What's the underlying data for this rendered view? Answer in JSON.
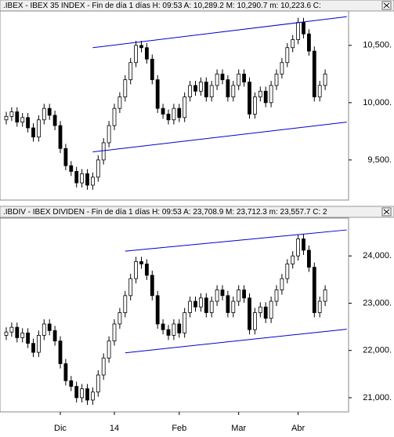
{
  "chart_data": [
    {
      "type": "candlestick",
      "title": ".IBEX - IBEX 35 INDEX - Fin de día 1 días H: 09:53 A: 10,289.2 M: 10,290.7 m: 10,223.6 C:",
      "ylim": [
        9150,
        10800
      ],
      "yticks": [
        {
          "value": 9500,
          "label": "9,500."
        },
        {
          "value": 10000,
          "label": "10,000."
        },
        {
          "value": 10500,
          "label": "10,500."
        }
      ],
      "open": [
        9850,
        9880,
        9920,
        9830,
        9870,
        9780,
        9700,
        9850,
        9950,
        9890,
        9800,
        9600,
        9450,
        9400,
        9300,
        9380,
        9280,
        9350,
        9500,
        9650,
        9800,
        9950,
        10050,
        10200,
        10350,
        10500,
        10480,
        10380,
        10200,
        9950,
        9900,
        9850,
        9950,
        9870,
        10050,
        10150,
        10100,
        10180,
        10050,
        10150,
        10250,
        10200,
        10050,
        10150,
        10250,
        10180,
        9900,
        10050,
        10100,
        10000,
        10150,
        10250,
        10350,
        10480,
        10550,
        10700,
        10600,
        10450,
        10050,
        10150
      ],
      "high": [
        9920,
        9960,
        9960,
        9910,
        9910,
        9820,
        9890,
        9990,
        9990,
        9930,
        9840,
        9640,
        9490,
        9440,
        9420,
        9420,
        9390,
        9540,
        9690,
        9840,
        9990,
        10090,
        10240,
        10390,
        10540,
        10540,
        10520,
        10420,
        10240,
        9990,
        9940,
        9990,
        9990,
        10090,
        10190,
        10190,
        10220,
        10220,
        10190,
        10290,
        10290,
        10240,
        10190,
        10290,
        10290,
        10220,
        10090,
        10140,
        10140,
        10190,
        10290,
        10390,
        10520,
        10590,
        10740,
        10740,
        10640,
        10490,
        10190,
        10290
      ],
      "low": [
        9810,
        9840,
        9790,
        9790,
        9740,
        9660,
        9660,
        9810,
        9850,
        9760,
        9560,
        9410,
        9360,
        9260,
        9260,
        9240,
        9240,
        9310,
        9460,
        9610,
        9760,
        9910,
        10010,
        10160,
        10310,
        10440,
        10340,
        10160,
        9910,
        9860,
        9810,
        9810,
        9830,
        9830,
        10010,
        10060,
        10060,
        10010,
        10010,
        10110,
        10160,
        10010,
        10010,
        10110,
        10140,
        9860,
        9860,
        10010,
        9960,
        9960,
        10110,
        10210,
        10310,
        10440,
        10510,
        10560,
        10410,
        10010,
        10010,
        10110
      ],
      "close": [
        9880,
        9920,
        9830,
        9870,
        9780,
        9700,
        9850,
        9950,
        9890,
        9800,
        9600,
        9450,
        9400,
        9300,
        9380,
        9280,
        9350,
        9500,
        9650,
        9800,
        9950,
        10050,
        10200,
        10350,
        10500,
        10480,
        10380,
        10200,
        9950,
        9900,
        9850,
        9950,
        9870,
        10050,
        10150,
        10100,
        10180,
        10050,
        10150,
        10250,
        10200,
        10050,
        10150,
        10250,
        10180,
        9900,
        10050,
        10100,
        10000,
        10150,
        10250,
        10350,
        10480,
        10550,
        10700,
        10600,
        10450,
        10050,
        10150,
        10250
      ],
      "trendlines": [
        {
          "x": [
            16,
            63
          ],
          "y": [
            10480,
            10750
          ]
        },
        {
          "x": [
            16,
            63
          ],
          "y": [
            9570,
            9830
          ]
        }
      ],
      "color": "#000000",
      "trend_color": "#0000cc"
    },
    {
      "type": "candlestick",
      "title": ".IBDIV - IBEX DIVIDEN - Fin de día 1 días H: 09:53 A: 23,708.9 M: 23,712.3 m: 23,557.7 C: 2",
      "ylim": [
        20700,
        24800
      ],
      "yticks": [
        {
          "value": 21000,
          "label": "21,000."
        },
        {
          "value": 22000,
          "label": "22,000."
        },
        {
          "value": 23000,
          "label": "23,000."
        },
        {
          "value": 24000,
          "label": "24,000."
        }
      ],
      "categories": [
        null,
        null,
        null,
        null,
        null,
        null,
        null,
        null,
        null,
        null,
        "Dic",
        null,
        null,
        null,
        null,
        null,
        null,
        null,
        null,
        null,
        "14",
        null,
        null,
        null,
        null,
        null,
        null,
        null,
        null,
        null,
        null,
        null,
        "Feb",
        null,
        null,
        null,
        null,
        null,
        null,
        null,
        null,
        null,
        null,
        "Mar",
        null,
        null,
        null,
        null,
        null,
        null,
        null,
        null,
        null,
        null,
        "Abr",
        null,
        null,
        null,
        null,
        null
      ],
      "open": [
        22320,
        22390,
        22490,
        22270,
        22370,
        22150,
        21960,
        22320,
        22560,
        22420,
        22200,
        21720,
        21360,
        21240,
        21000,
        21190,
        20950,
        21120,
        21480,
        21840,
        22200,
        22560,
        22800,
        23160,
        23520,
        23880,
        23830,
        23590,
        23160,
        22560,
        22440,
        22320,
        22560,
        22370,
        22800,
        23040,
        22920,
        23110,
        22800,
        23040,
        23280,
        23160,
        22800,
        23040,
        23280,
        23110,
        22440,
        22800,
        22920,
        22680,
        23040,
        23280,
        23520,
        23830,
        24000,
        24360,
        24120,
        23760,
        22800,
        23040
      ],
      "high": [
        22490,
        22590,
        22590,
        22470,
        22470,
        22250,
        22420,
        22660,
        22660,
        22520,
        22300,
        21820,
        21460,
        21340,
        21290,
        21290,
        21220,
        21580,
        21940,
        22300,
        22660,
        22900,
        23260,
        23620,
        23980,
        23980,
        23930,
        23690,
        23260,
        22660,
        22540,
        22660,
        22660,
        22900,
        23140,
        23140,
        23210,
        23210,
        23140,
        23380,
        23380,
        23260,
        23140,
        23380,
        23380,
        23210,
        22900,
        23020,
        23020,
        23140,
        23380,
        23620,
        23930,
        24100,
        24460,
        24460,
        24220,
        23860,
        23140,
        23380
      ],
      "low": [
        22220,
        22290,
        22170,
        22170,
        22050,
        21860,
        21860,
        22220,
        22320,
        22100,
        21620,
        21260,
        21140,
        20900,
        20900,
        20850,
        20850,
        21020,
        21380,
        21740,
        22100,
        22460,
        22700,
        23060,
        23420,
        23730,
        23490,
        23060,
        22460,
        22340,
        22220,
        22220,
        22270,
        22270,
        22700,
        22820,
        22820,
        22700,
        22700,
        22940,
        23060,
        22700,
        22700,
        22940,
        23010,
        22340,
        22340,
        22700,
        22580,
        22580,
        22940,
        23180,
        23420,
        23730,
        23900,
        24020,
        23660,
        22700,
        22700,
        22940
      ],
      "close": [
        22390,
        22490,
        22270,
        22370,
        22150,
        21960,
        22320,
        22560,
        22420,
        22200,
        21720,
        21360,
        21240,
        21000,
        21190,
        20950,
        21120,
        21480,
        21840,
        22200,
        22560,
        22800,
        23160,
        23520,
        23880,
        23830,
        23590,
        23160,
        22560,
        22440,
        22320,
        22560,
        22370,
        22800,
        23040,
        22920,
        23110,
        22800,
        23040,
        23280,
        23160,
        22800,
        23040,
        23280,
        23110,
        22440,
        22800,
        22920,
        22680,
        23040,
        23280,
        23520,
        23830,
        24000,
        24360,
        24120,
        23760,
        22800,
        23040,
        23280
      ],
      "trendlines": [
        {
          "x": [
            22,
            63
          ],
          "y": [
            24100,
            24550
          ]
        },
        {
          "x": [
            22,
            63
          ],
          "y": [
            21950,
            22450
          ]
        }
      ],
      "color": "#000000",
      "trend_color": "#0000cc"
    }
  ]
}
